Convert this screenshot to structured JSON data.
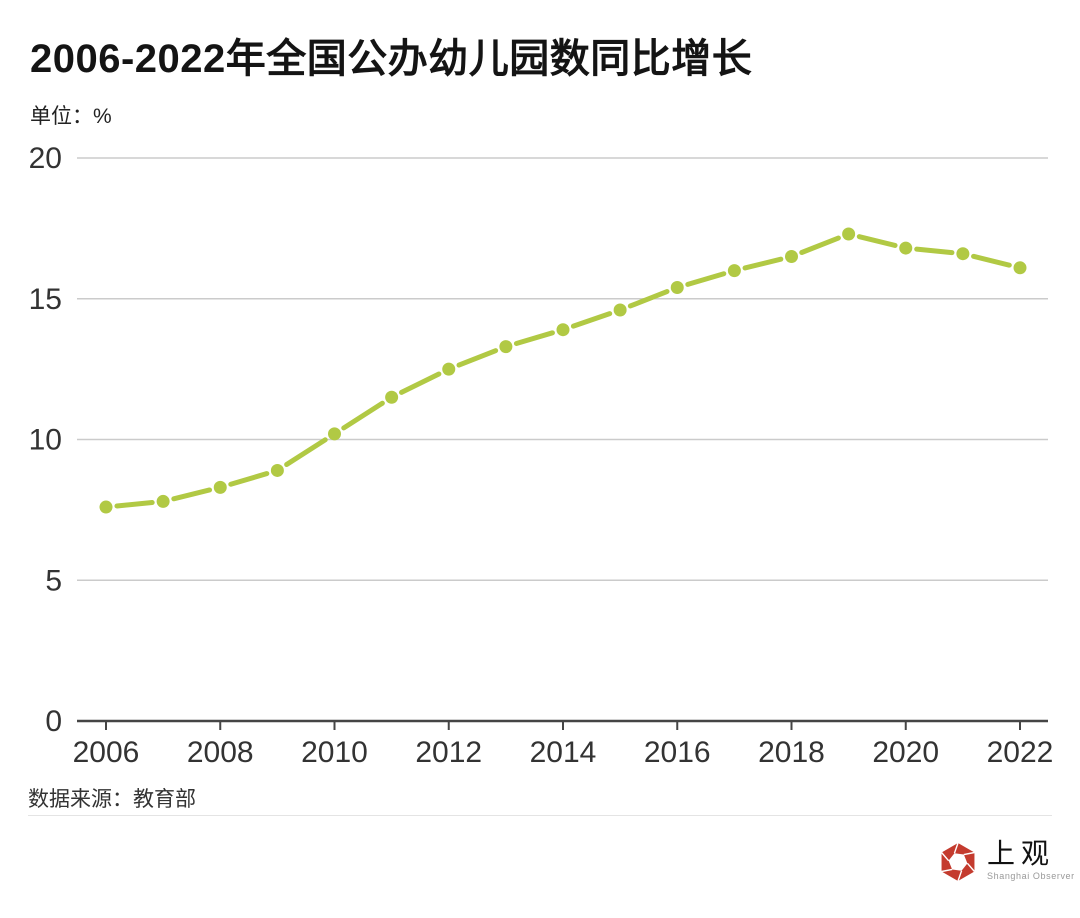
{
  "header": {
    "title": "2006-2022年全国公办幼儿园数同比增长",
    "unit_label": "单位：%"
  },
  "chart_data": {
    "type": "line",
    "title": "2006-2022年全国公办幼儿园数同比增长",
    "unit": "%",
    "xlabel": "",
    "ylabel": "单位：%",
    "x": [
      2006,
      2007,
      2008,
      2009,
      2010,
      2011,
      2012,
      2013,
      2014,
      2015,
      2016,
      2017,
      2018,
      2019,
      2020,
      2021,
      2022
    ],
    "values": [
      7.6,
      7.8,
      8.3,
      8.9,
      10.2,
      11.5,
      12.5,
      13.3,
      13.9,
      14.6,
      15.4,
      16.0,
      16.5,
      17.3,
      16.8,
      16.6,
      16.1
    ],
    "xticks": [
      2006,
      2008,
      2010,
      2012,
      2014,
      2016,
      2018,
      2020,
      2022
    ],
    "yticks": [
      0,
      5,
      10,
      15,
      20
    ],
    "ylim": [
      0,
      20
    ],
    "grid": true,
    "legend_position": "none",
    "marker": "circle",
    "colors": {
      "line": "#b1c944",
      "grid": "#cbcbcb",
      "axis": "#454545",
      "tick_label": "#333333"
    }
  },
  "footer": {
    "source": "数据来源：教育部",
    "logo_cn": "上观",
    "logo_en": "Shanghai Observer",
    "logo_color": "#c43b2e"
  }
}
